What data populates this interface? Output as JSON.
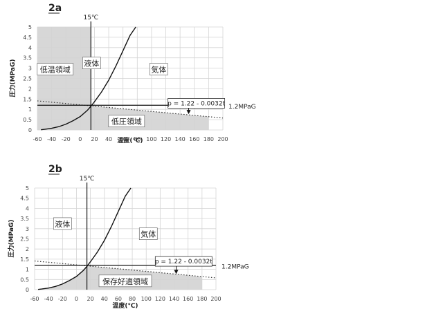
{
  "chart_data": [
    {
      "type": "line",
      "panel_label": "2a",
      "xlabel": "温度(℃)",
      "ylabel": "圧力(MPaG)",
      "xlim": [
        -60,
        200
      ],
      "ylim": [
        0,
        5
      ],
      "x_ticks": [
        -60,
        -40,
        -20,
        0,
        20,
        40,
        60,
        80,
        100,
        120,
        140,
        160,
        180,
        200
      ],
      "y_ticks": [
        0,
        0.5,
        1,
        1.5,
        2,
        2.5,
        3,
        3.5,
        4,
        4.5,
        5
      ],
      "grid": true,
      "series": [
        {
          "style": "solid-curve",
          "x": [
            -55,
            -50,
            -40,
            -30,
            -20,
            -10,
            0,
            10,
            15,
            20,
            30,
            40,
            50,
            60,
            70,
            78
          ],
          "y": [
            0.01,
            0.03,
            0.08,
            0.16,
            0.28,
            0.45,
            0.65,
            0.95,
            1.15,
            1.37,
            1.85,
            2.42,
            3.1,
            3.85,
            4.6,
            5.0
          ]
        },
        {
          "style": "dotted-line",
          "formula": "p = 1.22 - 0.0032t",
          "x": [
            -60,
            200
          ],
          "y": [
            1.412,
            0.58
          ]
        },
        {
          "style": "horizontal-line",
          "x": [
            -60,
            200
          ],
          "y": [
            1.2,
            1.2
          ]
        },
        {
          "style": "vertical-line",
          "x": [
            15,
            15
          ],
          "y": [
            0,
            5
          ]
        }
      ],
      "annotations": {
        "vline_label": "15℃",
        "hline_label": "1.2MPaG",
        "formula_label": "p = 1.22 - 0.0032t",
        "region_gas": "気体",
        "region_liquid": "液体",
        "region_low_temp": "低温領域",
        "region_low_pressure": "低圧領域"
      },
      "shaded_regions": [
        "x from -60 to 15 (all pressures)",
        "x from 15 to 180 below dotted line"
      ]
    },
    {
      "type": "line",
      "panel_label": "2b",
      "xlabel": "温度(℃)",
      "ylabel": "圧力(MPaG)",
      "xlim": [
        -60,
        200
      ],
      "ylim": [
        0,
        5
      ],
      "x_ticks": [
        -60,
        -40,
        -20,
        0,
        20,
        40,
        60,
        80,
        100,
        120,
        140,
        160,
        180,
        200
      ],
      "y_ticks": [
        0,
        0.5,
        1,
        1.5,
        2,
        2.5,
        3,
        3.5,
        4,
        4.5,
        5
      ],
      "grid": true,
      "series": [
        {
          "style": "solid-curve",
          "x": [
            -55,
            -50,
            -40,
            -30,
            -20,
            -10,
            0,
            10,
            15,
            20,
            30,
            40,
            50,
            60,
            70,
            78
          ],
          "y": [
            0.01,
            0.03,
            0.08,
            0.16,
            0.28,
            0.45,
            0.65,
            0.95,
            1.15,
            1.37,
            1.85,
            2.42,
            3.1,
            3.85,
            4.6,
            5.0
          ]
        },
        {
          "style": "dotted-line",
          "formula": "p = 1.22 - 0.0032t",
          "x": [
            -60,
            200
          ],
          "y": [
            1.412,
            0.58
          ]
        },
        {
          "style": "horizontal-line",
          "x": [
            -60,
            200
          ],
          "y": [
            1.2,
            1.2
          ]
        },
        {
          "style": "vertical-line",
          "x": [
            15,
            15
          ],
          "y": [
            0,
            5
          ]
        }
      ],
      "annotations": {
        "vline_label": "15℃",
        "hline_label": "1.2MPaG",
        "formula_label": "p = 1.22 - 0.0032t",
        "region_gas": "気体",
        "region_liquid": "液体",
        "region_storage": "保存好適領域"
      },
      "shaded_regions": [
        "below curve (x<15) and below dotted line (15 to 180)"
      ]
    }
  ]
}
